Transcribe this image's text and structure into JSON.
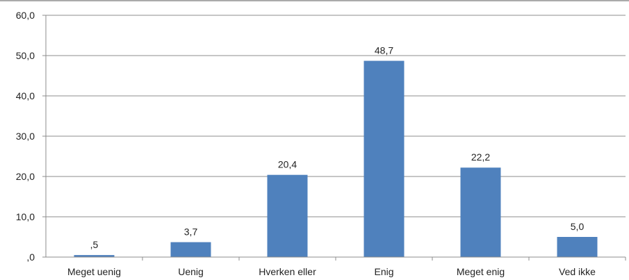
{
  "chart_data": {
    "type": "bar",
    "categories": [
      "Meget uenig",
      "Uenig",
      "Hverken eller",
      "Enig",
      "Meget enig",
      "Ved ikke"
    ],
    "values": [
      0.5,
      3.7,
      20.4,
      48.7,
      22.2,
      5.0
    ],
    "data_labels": [
      ",5",
      "3,7",
      "20,4",
      "48,7",
      "22,2",
      "5,0"
    ],
    "ylim": [
      0,
      60
    ],
    "yticks": [
      0,
      10,
      20,
      30,
      40,
      50,
      60
    ],
    "ytick_labels": [
      ",0",
      "10,0",
      "20,0",
      "30,0",
      "40,0",
      "50,0",
      "60,0"
    ],
    "grid": true,
    "bar_color": "#4f81bd",
    "grid_color": "#8c8c8c"
  }
}
